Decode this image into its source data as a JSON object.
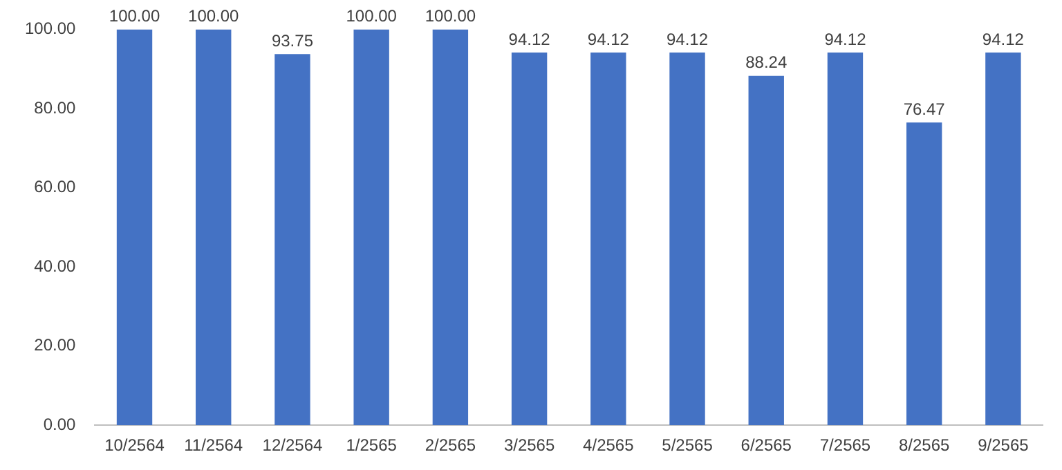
{
  "chart_data": {
    "type": "bar",
    "categories": [
      "10/2564",
      "11/2564",
      "12/2564",
      "1/2565",
      "2/2565",
      "3/2565",
      "4/2565",
      "5/2565",
      "6/2565",
      "7/2565",
      "8/2565",
      "9/2565"
    ],
    "values": [
      100.0,
      100.0,
      93.75,
      100.0,
      100.0,
      94.12,
      94.12,
      94.12,
      88.24,
      94.12,
      76.47,
      94.12
    ],
    "value_labels": [
      "100.00",
      "100.00",
      "93.75",
      "100.00",
      "100.00",
      "94.12",
      "94.12",
      "94.12",
      "88.24",
      "94.12",
      "76.47",
      "94.12"
    ],
    "color": "#4472c4",
    "ylim": [
      0,
      100
    ],
    "yticks": [
      {
        "value": 0,
        "label": "0.00"
      },
      {
        "value": 20,
        "label": "20.00"
      },
      {
        "value": 40,
        "label": "40.00"
      },
      {
        "value": 60,
        "label": "60.00"
      },
      {
        "value": 80,
        "label": "80.00"
      },
      {
        "value": 100,
        "label": "100.00"
      }
    ],
    "grid": false,
    "legend": false
  }
}
